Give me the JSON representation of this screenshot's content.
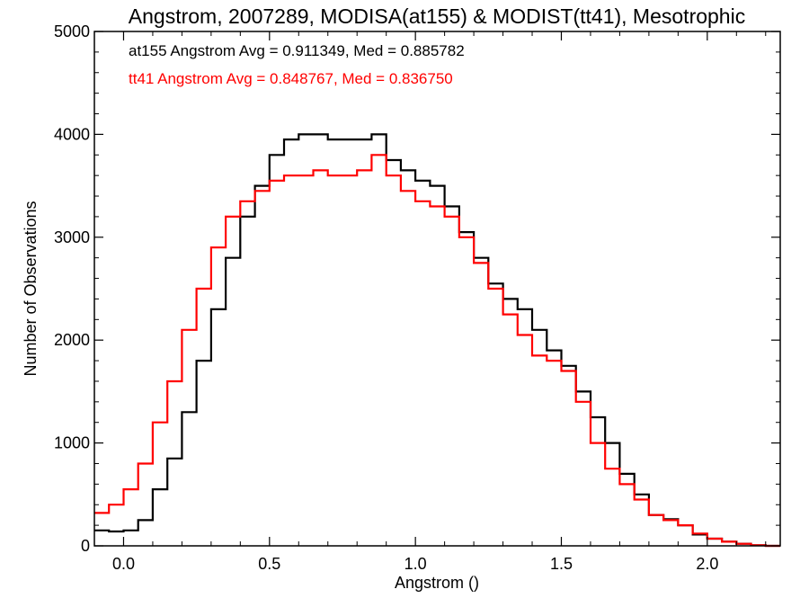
{
  "chart_data": {
    "type": "line",
    "step": true,
    "title": "Angstrom, 2007289, MODISA(at155) & MODIST(tt41), Mesotrophic",
    "xlabel": "Angstrom ()",
    "ylabel": "Number of Observations",
    "xlim": [
      -0.1,
      2.25
    ],
    "ylim": [
      0,
      5000
    ],
    "xticks": [
      0.0,
      0.5,
      1.0,
      1.5,
      2.0
    ],
    "xtick_labels": [
      "0.0",
      "0.5",
      "1.0",
      "1.5",
      "2.0"
    ],
    "yticks": [
      0,
      1000,
      2000,
      3000,
      4000,
      5000
    ],
    "ytick_labels": [
      "0",
      "1000",
      "2000",
      "3000",
      "4000",
      "5000"
    ],
    "grid": false,
    "annotations": [
      {
        "text": "at155 Angstrom Avg = 0.911349, Med = 0.885782",
        "color": "#000000"
      },
      {
        "text": "tt41 Angstrom Avg = 0.848767, Med = 0.836750",
        "color": "#ff0000"
      }
    ],
    "series": [
      {
        "color": "#000000",
        "x": [
          -0.1,
          -0.05,
          0.0,
          0.05,
          0.1,
          0.15,
          0.2,
          0.25,
          0.3,
          0.35,
          0.4,
          0.45,
          0.5,
          0.55,
          0.6,
          0.65,
          0.7,
          0.75,
          0.8,
          0.85,
          0.9,
          0.95,
          1.0,
          1.05,
          1.1,
          1.15,
          1.2,
          1.25,
          1.3,
          1.35,
          1.4,
          1.45,
          1.5,
          1.55,
          1.6,
          1.65,
          1.7,
          1.75,
          1.8,
          1.85,
          1.9,
          1.95,
          2.0,
          2.05,
          2.1,
          2.15,
          2.2,
          2.25
        ],
        "y": [
          150,
          140,
          150,
          250,
          550,
          850,
          1300,
          1800,
          2300,
          2800,
          3200,
          3500,
          3800,
          3950,
          4000,
          4000,
          3950,
          3950,
          3950,
          4000,
          3750,
          3650,
          3550,
          3500,
          3300,
          3050,
          2800,
          2550,
          2400,
          2300,
          2100,
          1900,
          1750,
          1500,
          1250,
          1000,
          700,
          500,
          300,
          260,
          200,
          110,
          70,
          40,
          20,
          5,
          0,
          0
        ]
      },
      {
        "color": "#ff0000",
        "x": [
          -0.1,
          -0.05,
          0.0,
          0.05,
          0.1,
          0.15,
          0.2,
          0.25,
          0.3,
          0.35,
          0.4,
          0.45,
          0.5,
          0.55,
          0.6,
          0.65,
          0.7,
          0.75,
          0.8,
          0.85,
          0.9,
          0.95,
          1.0,
          1.05,
          1.1,
          1.15,
          1.2,
          1.25,
          1.3,
          1.35,
          1.4,
          1.45,
          1.5,
          1.55,
          1.6,
          1.65,
          1.7,
          1.75,
          1.8,
          1.85,
          1.9,
          1.95,
          2.0,
          2.05,
          2.1,
          2.15,
          2.2,
          2.25
        ],
        "y": [
          320,
          400,
          550,
          800,
          1200,
          1600,
          2100,
          2500,
          2900,
          3200,
          3350,
          3450,
          3550,
          3600,
          3600,
          3650,
          3600,
          3600,
          3650,
          3800,
          3600,
          3450,
          3350,
          3300,
          3200,
          3000,
          2750,
          2500,
          2250,
          2050,
          1850,
          1800,
          1700,
          1400,
          1000,
          750,
          600,
          450,
          300,
          250,
          200,
          120,
          70,
          40,
          20,
          5,
          0,
          0
        ]
      }
    ]
  }
}
